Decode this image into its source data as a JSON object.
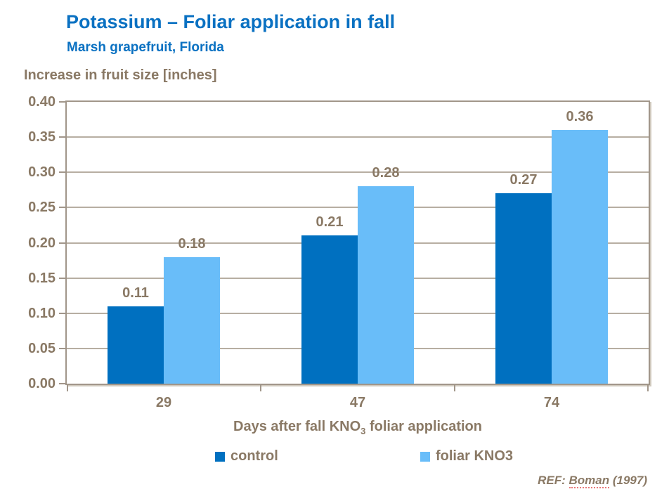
{
  "header": {
    "title": "Potassium – Foliar application in fall",
    "subtitle": "Marsh grapefruit, Florida"
  },
  "axis": {
    "y_title": "Increase in fruit size [inches]",
    "x_title_pre": "Days after fall KNO",
    "x_title_sub": "3",
    "x_title_post": " foliar application"
  },
  "legend": {
    "items": [
      {
        "label": "control",
        "color": "#0070C0"
      },
      {
        "label": "foliar KNO3",
        "color": "#69BDF9"
      }
    ]
  },
  "reference": {
    "pre": "REF: ",
    "flagged_word": "Boman",
    "post": " (1997)"
  },
  "colors": {
    "title_blue": "#0A71C2",
    "text_brown": "#8A7965",
    "control_bar": "#0070C0",
    "foliar_bar": "#69BDF9",
    "gridline": "#B7AEA2",
    "frame": "#A1968A",
    "spellcheck_red": "#E25656"
  },
  "chart_data": {
    "type": "bar",
    "title": "Potassium – Foliar application in fall",
    "subtitle": "Marsh grapefruit, Florida",
    "categories": [
      "29",
      "47",
      "74"
    ],
    "series": [
      {
        "name": "control",
        "values": [
          0.11,
          0.21,
          0.27
        ],
        "color": "#0070C0"
      },
      {
        "name": "foliar KNO3",
        "values": [
          0.18,
          0.28,
          0.36
        ],
        "color": "#69BDF9"
      }
    ],
    "data_labels": {
      "control": [
        "0.11",
        "0.21",
        "0.27"
      ],
      "foliar KNO3": [
        "0.18",
        "0.28",
        "0.36"
      ]
    },
    "xlabel": "Days after fall KNO3 foliar application",
    "ylabel": "Increase in fruit size [inches]",
    "ylim": [
      0,
      0.4
    ],
    "ytick_step": 0.05,
    "ytick_labels": [
      "0.00",
      "0.05",
      "0.10",
      "0.15",
      "0.20",
      "0.25",
      "0.30",
      "0.35",
      "0.40"
    ],
    "grid": true,
    "show_data_labels": true,
    "legend_position": "bottom",
    "reference": "REF: Boman (1997)"
  }
}
